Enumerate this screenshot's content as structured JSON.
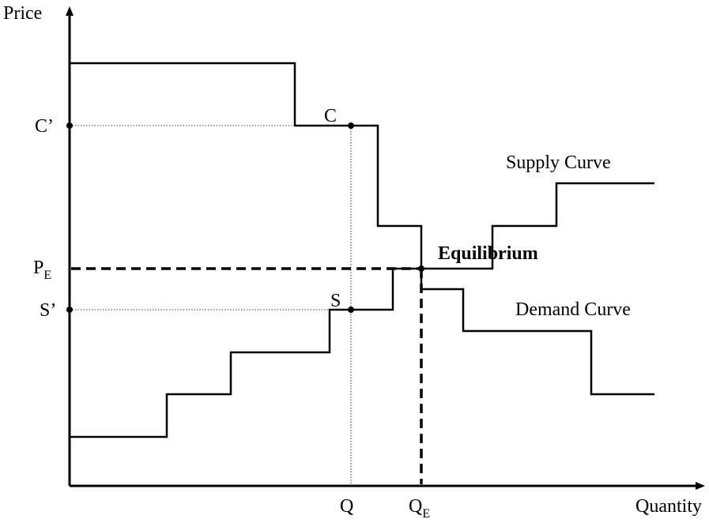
{
  "axes": {
    "y_label": "Price",
    "x_label": "Quantity"
  },
  "y_labels": {
    "c_prime": "C’",
    "pe": {
      "main": "P",
      "sub": "E"
    },
    "s_prime": "S’"
  },
  "x_labels": {
    "q": "Q",
    "qe": {
      "main": "Q",
      "sub": "E"
    }
  },
  "points": {
    "c": "C",
    "s": "S"
  },
  "curves": {
    "supply": "Supply Curve",
    "demand": "Demand Curve"
  },
  "annotation": "Equilibrium"
}
